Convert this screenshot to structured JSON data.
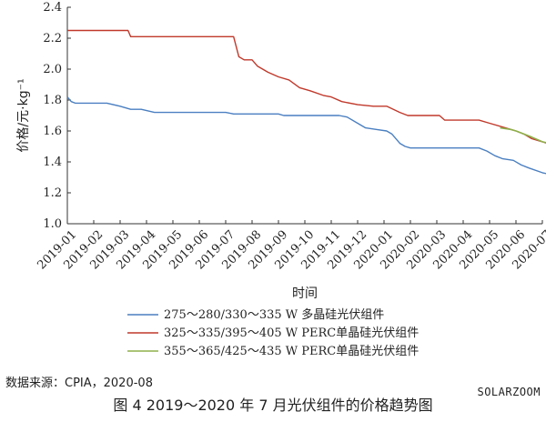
{
  "chart_data": {
    "type": "line",
    "xlabel": "时间",
    "ylabel": "价格/元·kg⁻¹",
    "ylim": [
      1.0,
      2.4
    ],
    "yticks": [
      "1.0",
      "1.2",
      "1.4",
      "1.6",
      "1.8",
      "2.0",
      "2.2",
      "2.4"
    ],
    "categories": [
      "2019-01",
      "2019-02",
      "2019-03",
      "2019-04",
      "2019-05",
      "2019-06",
      "2019-07",
      "2019-08",
      "2019-09",
      "2019-10",
      "2019-11",
      "2019-12",
      "2020-01",
      "2020-02",
      "2020-03",
      "2020-04",
      "2020-05",
      "2020-06",
      "2020-07"
    ],
    "series": [
      {
        "name": "275～280/330～335 W 多晶硅光伏组件",
        "color": "#4a7fc1",
        "points": [
          [
            0,
            1.82
          ],
          [
            0.15,
            1.79
          ],
          [
            0.3,
            1.78
          ],
          [
            1.0,
            1.78
          ],
          [
            1.5,
            1.78
          ],
          [
            2.0,
            1.76
          ],
          [
            2.4,
            1.74
          ],
          [
            2.8,
            1.74
          ],
          [
            3.3,
            1.72
          ],
          [
            4.0,
            1.72
          ],
          [
            5.0,
            1.72
          ],
          [
            6.0,
            1.72
          ],
          [
            6.3,
            1.71
          ],
          [
            7.0,
            1.71
          ],
          [
            8.0,
            1.71
          ],
          [
            8.2,
            1.7
          ],
          [
            9.0,
            1.7
          ],
          [
            10.0,
            1.7
          ],
          [
            10.3,
            1.7
          ],
          [
            10.6,
            1.69
          ],
          [
            11.0,
            1.65
          ],
          [
            11.3,
            1.62
          ],
          [
            11.7,
            1.61
          ],
          [
            12.1,
            1.6
          ],
          [
            12.3,
            1.58
          ],
          [
            12.6,
            1.52
          ],
          [
            12.8,
            1.5
          ],
          [
            13.0,
            1.49
          ],
          [
            14.0,
            1.49
          ],
          [
            15.0,
            1.49
          ],
          [
            15.6,
            1.49
          ],
          [
            15.9,
            1.47
          ],
          [
            16.2,
            1.44
          ],
          [
            16.5,
            1.42
          ],
          [
            16.9,
            1.41
          ],
          [
            17.2,
            1.38
          ],
          [
            17.5,
            1.36
          ],
          [
            18.0,
            1.33
          ],
          [
            18.5,
            1.31
          ],
          [
            19.0,
            1.29
          ]
        ]
      },
      {
        "name": "325～335/395～405 W PERC单晶硅光伏组件",
        "color": "#c0392b",
        "points": [
          [
            0,
            2.25
          ],
          [
            1.0,
            2.25
          ],
          [
            2.0,
            2.25
          ],
          [
            2.3,
            2.25
          ],
          [
            2.4,
            2.21
          ],
          [
            3.0,
            2.21
          ],
          [
            4.0,
            2.21
          ],
          [
            5.0,
            2.21
          ],
          [
            6.0,
            2.21
          ],
          [
            6.3,
            2.21
          ],
          [
            6.5,
            2.08
          ],
          [
            6.7,
            2.06
          ],
          [
            7.0,
            2.06
          ],
          [
            7.2,
            2.02
          ],
          [
            7.6,
            1.98
          ],
          [
            8.0,
            1.95
          ],
          [
            8.4,
            1.93
          ],
          [
            8.8,
            1.88
          ],
          [
            9.2,
            1.86
          ],
          [
            9.7,
            1.83
          ],
          [
            10.0,
            1.82
          ],
          [
            10.4,
            1.79
          ],
          [
            11.0,
            1.77
          ],
          [
            11.6,
            1.76
          ],
          [
            12.1,
            1.76
          ],
          [
            12.6,
            1.72
          ],
          [
            12.9,
            1.7
          ],
          [
            13.5,
            1.7
          ],
          [
            14.1,
            1.7
          ],
          [
            14.3,
            1.67
          ],
          [
            15.0,
            1.67
          ],
          [
            15.6,
            1.67
          ],
          [
            16.0,
            1.65
          ],
          [
            16.6,
            1.62
          ],
          [
            17.0,
            1.6
          ],
          [
            17.3,
            1.58
          ],
          [
            17.6,
            1.55
          ],
          [
            18.0,
            1.53
          ],
          [
            18.5,
            1.5
          ],
          [
            19.0,
            1.47
          ]
        ]
      },
      {
        "name": "355～365/425～435 W PERC单晶硅光伏组件",
        "color": "#8db04a",
        "points": [
          [
            16.4,
            1.62
          ],
          [
            16.8,
            1.61
          ],
          [
            17.0,
            1.6
          ],
          [
            17.3,
            1.58
          ],
          [
            17.6,
            1.56
          ],
          [
            18.0,
            1.53
          ],
          [
            18.5,
            1.51
          ],
          [
            19.0,
            1.48
          ]
        ]
      }
    ]
  },
  "source": "数据来源：CPIA，2020-08",
  "caption": "图 4 2019～2020 年 7 月光伏组件的价格趋势图",
  "watermark": "SOLARZOOM"
}
